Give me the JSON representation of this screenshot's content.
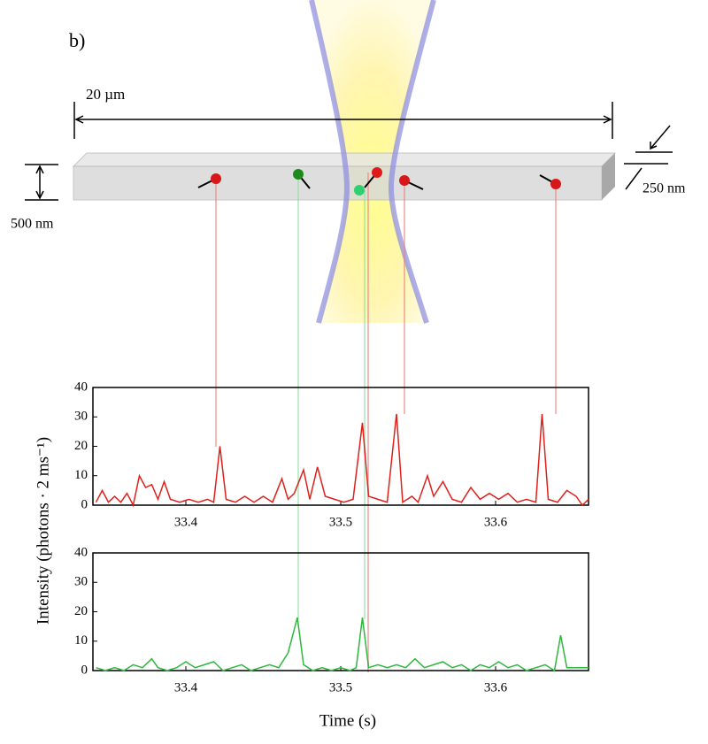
{
  "figure": {
    "panel_label": "b)",
    "scale_length": "20 µm",
    "height_label": "500 nm",
    "depth_label": "250 nm",
    "ylabel": "Intensity (photons · 2 ms⁻¹)",
    "xlabel": "Time (s)"
  },
  "chart_data": [
    {
      "type": "line",
      "color": "#e0201b",
      "x": [
        33.342,
        33.346,
        33.35,
        33.354,
        33.358,
        33.362,
        33.366,
        33.37,
        33.374,
        33.378,
        33.382,
        33.386,
        33.39,
        33.396,
        33.402,
        33.408,
        33.414,
        33.418,
        33.422,
        33.426,
        33.432,
        33.438,
        33.444,
        33.45,
        33.456,
        33.462,
        33.466,
        33.47,
        33.476,
        33.48,
        33.485,
        33.49,
        33.496,
        33.502,
        33.508,
        33.514,
        33.518,
        33.524,
        33.53,
        33.536,
        33.54,
        33.546,
        33.55,
        33.556,
        33.56,
        33.566,
        33.572,
        33.578,
        33.584,
        33.59,
        33.596,
        33.602,
        33.608,
        33.614,
        33.62,
        33.626,
        33.63,
        33.634,
        33.64,
        33.646,
        33.652,
        33.656,
        33.66
      ],
      "values": [
        1,
        5,
        1,
        3,
        1,
        4,
        0,
        10,
        6,
        7,
        2,
        8,
        2,
        1,
        2,
        1,
        2,
        1,
        20,
        2,
        1,
        3,
        1,
        3,
        1,
        9,
        2,
        4,
        12,
        2,
        13,
        3,
        2,
        1,
        2,
        28,
        3,
        2,
        1,
        31,
        1,
        3,
        1,
        10,
        3,
        8,
        2,
        1,
        6,
        2,
        4,
        2,
        4,
        1,
        2,
        1,
        31,
        2,
        1,
        5,
        3,
        0,
        2
      ],
      "xlim": [
        33.34,
        33.66
      ],
      "xticks": [
        33.4,
        33.5,
        33.6
      ],
      "ylim": [
        0,
        40
      ],
      "yticks": [
        0,
        10,
        20,
        30,
        40
      ]
    },
    {
      "type": "line",
      "color": "#2db83d",
      "x": [
        33.342,
        33.348,
        33.354,
        33.36,
        33.366,
        33.372,
        33.378,
        33.382,
        33.388,
        33.394,
        33.4,
        33.406,
        33.412,
        33.418,
        33.424,
        33.43,
        33.436,
        33.442,
        33.448,
        33.454,
        33.46,
        33.466,
        33.472,
        33.476,
        33.482,
        33.488,
        33.494,
        33.5,
        33.506,
        33.51,
        33.514,
        33.518,
        33.524,
        33.53,
        33.536,
        33.542,
        33.548,
        33.554,
        33.56,
        33.566,
        33.572,
        33.578,
        33.584,
        33.59,
        33.596,
        33.602,
        33.608,
        33.614,
        33.62,
        33.626,
        33.632,
        33.638,
        33.642,
        33.646,
        33.652,
        33.66
      ],
      "values": [
        1,
        0,
        1,
        0,
        2,
        1,
        4,
        1,
        0,
        1,
        3,
        1,
        2,
        3,
        0,
        1,
        2,
        0,
        1,
        2,
        1,
        6,
        18,
        2,
        0,
        1,
        0,
        1,
        0,
        1,
        18,
        1,
        2,
        1,
        2,
        1,
        4,
        1,
        2,
        3,
        1,
        2,
        0,
        2,
        1,
        3,
        1,
        2,
        0,
        1,
        2,
        0,
        12,
        1,
        1,
        1
      ],
      "xlim": [
        33.34,
        33.66
      ],
      "xticks": [
        33.4,
        33.5,
        33.6
      ],
      "ylim": [
        0,
        40
      ],
      "yticks": [
        0,
        10,
        20,
        30,
        40
      ]
    }
  ]
}
